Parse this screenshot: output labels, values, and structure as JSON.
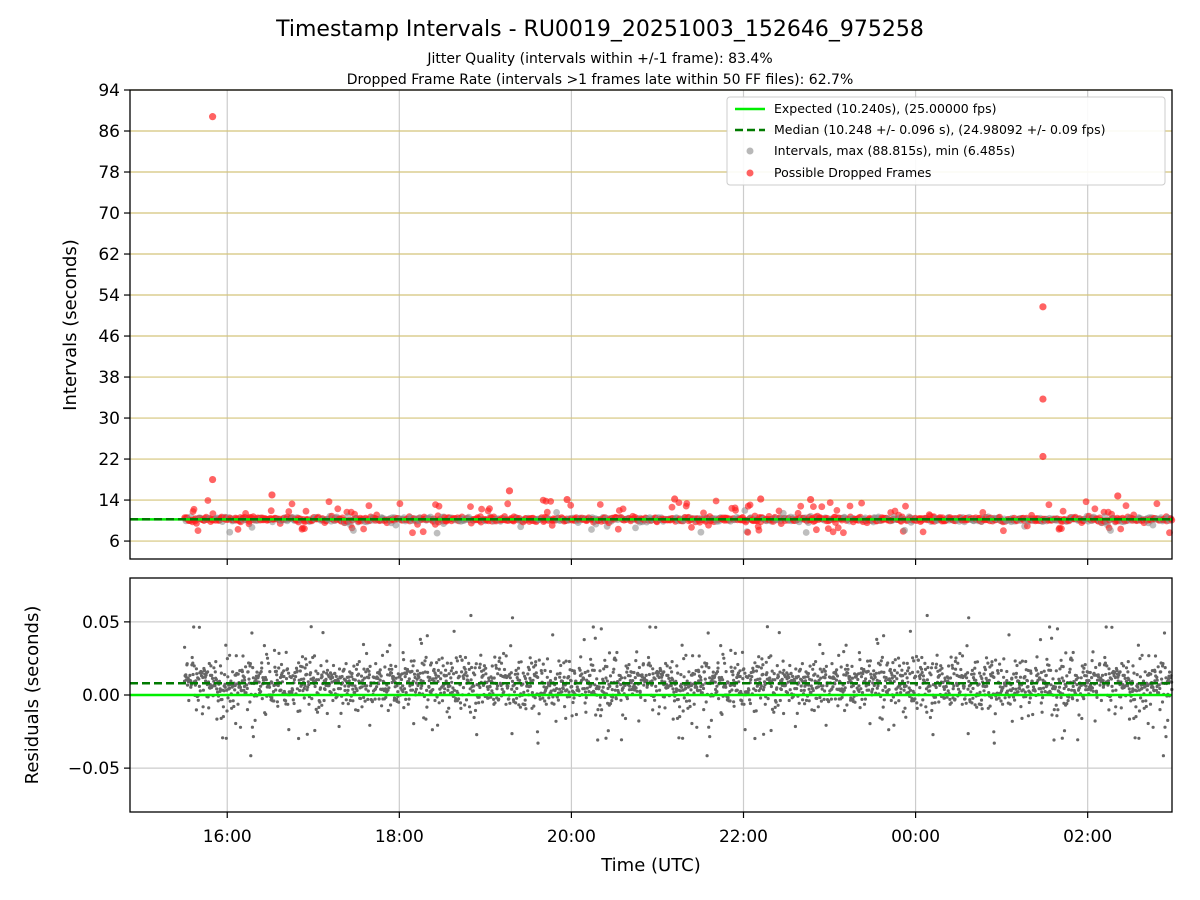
{
  "colors": {
    "expected": "#00ee00",
    "median": "#007a00",
    "intervals": "#888888",
    "dropped": "#ff2020",
    "residuals": "#666666",
    "hgrid_top": "#d4c47a",
    "grid": "#cccccc"
  },
  "chart_data": [
    {
      "type": "scatter",
      "title": "Timestamp Intervals - RU0019_20251003_152646_975258",
      "subtitle1": "Jitter Quality (intervals within +/-1 frame): 83.4%",
      "subtitle2": "Dropped Frame Rate (intervals >1 frames late within 50 FF files): 62.7%",
      "ylabel": "Intervals (seconds)",
      "xlim_hours": [
        14.87,
        26.98
      ],
      "ylim": [
        2.5,
        94
      ],
      "yticks": [
        6,
        14,
        22,
        30,
        38,
        46,
        54,
        62,
        70,
        78,
        86,
        94
      ],
      "ytick_labels": [
        "6",
        "14",
        "22",
        "30",
        "38",
        "46",
        "54",
        "62",
        "70",
        "78",
        "86",
        "94"
      ],
      "legend_position": "top-right",
      "legend": [
        {
          "kind": "line",
          "label": "Expected (10.240s), (25.00000 fps)"
        },
        {
          "kind": "dash",
          "label": "Median (10.248 +/- 0.096 s), (24.98092 +/- 0.09 fps)"
        },
        {
          "kind": "gray-dot",
          "label": "Intervals, max (88.815s), min (6.485s)"
        },
        {
          "kind": "red-dot",
          "label": "Possible Dropped Frames"
        }
      ],
      "expected_line": 10.24,
      "median_line": 10.248,
      "time_range_hours": [
        15.5,
        26.98
      ],
      "outliers": [
        {
          "hour": 15.83,
          "value": 88.8
        },
        {
          "hour": 15.83,
          "value": 18.0
        },
        {
          "hour": 16.52,
          "value": 15.0
        },
        {
          "hour": 19.28,
          "value": 15.8
        },
        {
          "hour": 19.95,
          "value": 14.1
        },
        {
          "hour": 21.2,
          "value": 14.2
        },
        {
          "hour": 22.2,
          "value": 14.2
        },
        {
          "hour": 22.78,
          "value": 14.1
        },
        {
          "hour": 25.48,
          "value": 51.7
        },
        {
          "hour": 25.48,
          "value": 33.7
        },
        {
          "hour": 25.48,
          "value": 22.5
        },
        {
          "hour": 26.35,
          "value": 14.8
        }
      ]
    },
    {
      "type": "scatter",
      "ylabel": "Residuals (seconds)",
      "xlabel": "Time (UTC)",
      "xlim_hours": [
        14.87,
        26.98
      ],
      "ylim": [
        -0.08,
        0.08
      ],
      "yticks": [
        -0.05,
        0.0,
        0.05
      ],
      "ytick_labels": [
        "−0.05",
        "0.00",
        "0.05"
      ],
      "xticks_hours": [
        16,
        18,
        20,
        22,
        24,
        26
      ],
      "xtick_labels": [
        "16:00",
        "18:00",
        "20:00",
        "22:00",
        "00:00",
        "02:00"
      ],
      "expected_residual": 0.0,
      "median_residual": 0.008,
      "time_range_hours": [
        15.5,
        26.98
      ]
    }
  ]
}
